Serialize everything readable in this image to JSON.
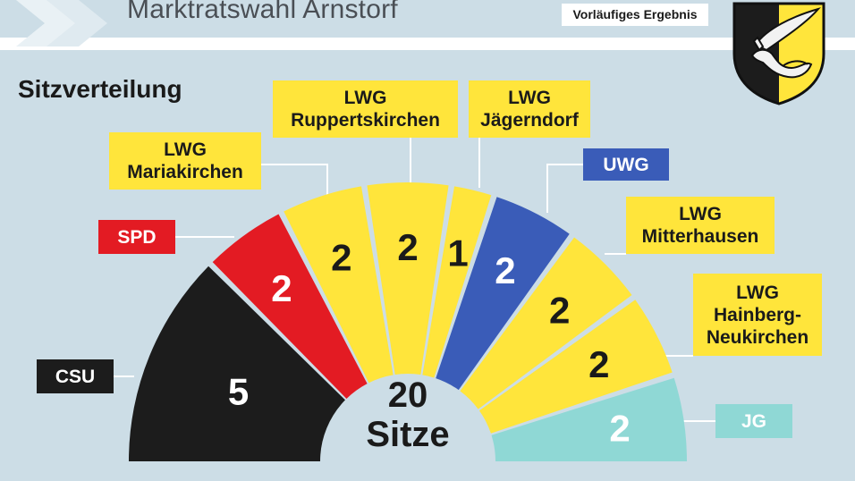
{
  "header": {
    "title": "Marktratswahl Arnstorf",
    "badge": "Vorläufiges Ergebnis"
  },
  "section_heading": "Sitzverteilung",
  "colors": {
    "background": "#ccdde6",
    "csu": "#1c1c1c",
    "spd": "#e31b23",
    "lwg": "#ffe53b",
    "uwg": "#3a5cb8",
    "jg": "#8fd8d5"
  },
  "chart_data": {
    "type": "pie",
    "variant": "half-donut parliament seat distribution",
    "total_seats": 20,
    "total_text": [
      "20",
      "Sitze"
    ],
    "parties": [
      {
        "label": [
          "CSU"
        ],
        "seats": 5,
        "color": "#1c1c1c"
      },
      {
        "label": [
          "SPD"
        ],
        "seats": 2,
        "color": "#e31b23"
      },
      {
        "label": [
          "LWG",
          "Mariakirchen"
        ],
        "seats": 2,
        "color": "#ffe53b"
      },
      {
        "label": [
          "LWG",
          "Ruppertskirchen"
        ],
        "seats": 2,
        "color": "#ffe53b"
      },
      {
        "label": [
          "LWG",
          "Jägerndorf"
        ],
        "seats": 1,
        "color": "#ffe53b"
      },
      {
        "label": [
          "UWG"
        ],
        "seats": 2,
        "color": "#3a5cb8"
      },
      {
        "label": [
          "LWG",
          "Mitterhausen"
        ],
        "seats": 2,
        "color": "#ffe53b"
      },
      {
        "label": [
          "LWG",
          "Hainberg-",
          "Neukirchen"
        ],
        "seats": 2,
        "color": "#ffe53b"
      },
      {
        "label": [
          "JG"
        ],
        "seats": 2,
        "color": "#8fd8d5"
      }
    ]
  }
}
